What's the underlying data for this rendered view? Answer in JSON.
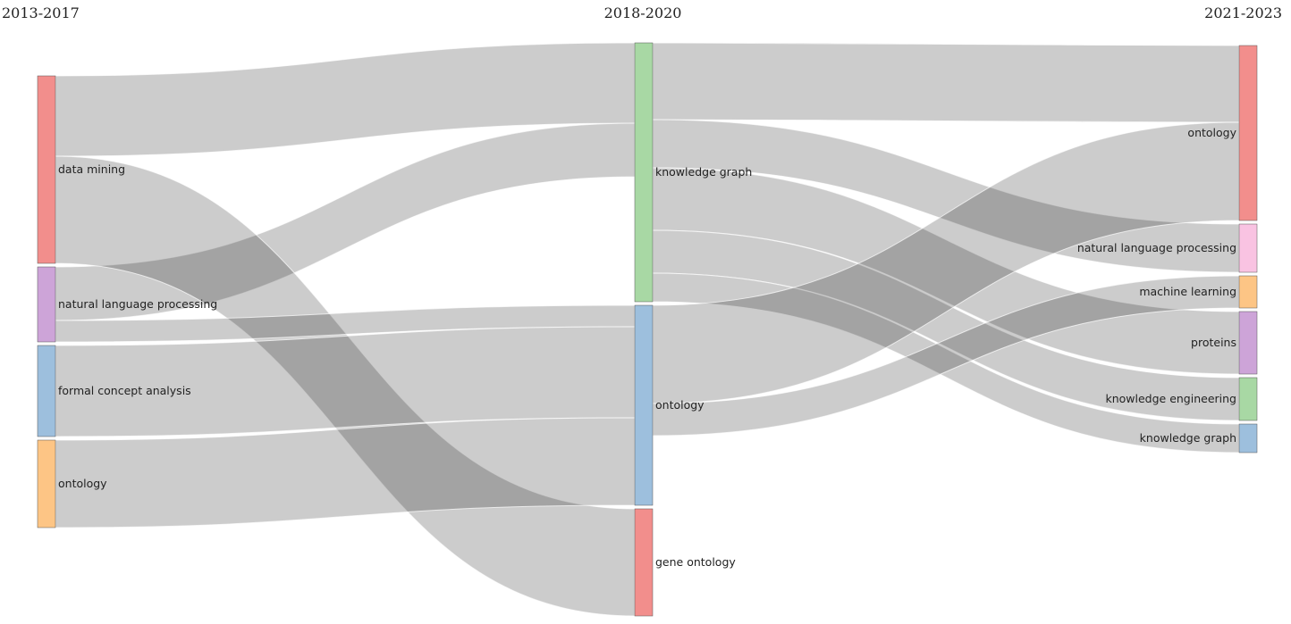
{
  "chart_data": {
    "type": "sankey",
    "columns": [
      "2013-2017",
      "2018-2020",
      "2021-2023"
    ],
    "nodes": [
      {
        "id": "a_dm",
        "label": "data mining",
        "column": 0,
        "color": "#f28e8c"
      },
      {
        "id": "a_nlp",
        "label": "natural language processing",
        "column": 0,
        "color": "#cda4d8"
      },
      {
        "id": "a_fca",
        "label": "formal concept analysis",
        "column": 0,
        "color": "#9dbfdd"
      },
      {
        "id": "a_ont",
        "label": "ontology",
        "column": 0,
        "color": "#fdc585"
      },
      {
        "id": "b_kg",
        "label": "knowledge graph",
        "column": 1,
        "color": "#a8d8a4"
      },
      {
        "id": "b_ont",
        "label": "ontology",
        "column": 1,
        "color": "#9dbfdd"
      },
      {
        "id": "b_go",
        "label": "gene ontology",
        "column": 1,
        "color": "#f28e8c"
      },
      {
        "id": "c_ont",
        "label": "ontology",
        "column": 2,
        "color": "#f28e8c"
      },
      {
        "id": "c_nlp",
        "label": "natural language processing",
        "column": 2,
        "color": "#f9c3e2"
      },
      {
        "id": "c_ml",
        "label": "machine learning",
        "column": 2,
        "color": "#fdc585"
      },
      {
        "id": "c_pro",
        "label": "proteins",
        "column": 2,
        "color": "#cda4d8"
      },
      {
        "id": "c_ke",
        "label": "knowledge engineering",
        "column": 2,
        "color": "#a8d8a4"
      },
      {
        "id": "c_kg",
        "label": "knowledge graph",
        "column": 2,
        "color": "#9dbfdd"
      }
    ],
    "links": [
      {
        "source": "a_dm",
        "target": "b_kg",
        "value": 90
      },
      {
        "source": "a_nlp",
        "target": "b_kg",
        "value": 60
      },
      {
        "source": "a_dm",
        "target": "b_go",
        "value": 120
      },
      {
        "source": "a_nlp",
        "target": "b_ont",
        "value": 24
      },
      {
        "source": "a_fca",
        "target": "b_ont",
        "value": 102
      },
      {
        "source": "a_ont",
        "target": "b_ont",
        "value": 98
      },
      {
        "source": "b_kg",
        "target": "c_ont",
        "value": 86
      },
      {
        "source": "b_kg",
        "target": "c_nlp",
        "value": 54
      },
      {
        "source": "b_kg",
        "target": "c_pro",
        "value": 70
      },
      {
        "source": "b_kg",
        "target": "c_ke",
        "value": 48
      },
      {
        "source": "b_kg",
        "target": "c_kg",
        "value": 32
      },
      {
        "source": "b_ont",
        "target": "c_ont",
        "value": 110
      },
      {
        "source": "b_ont",
        "target": "c_ml",
        "value": 36
      }
    ]
  }
}
